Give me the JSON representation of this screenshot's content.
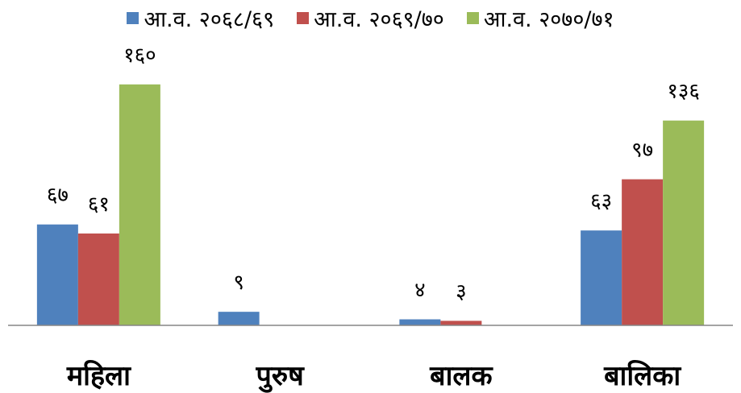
{
  "chart_data": {
    "type": "bar",
    "categories": [
      "महिला",
      "पुरुष",
      "बालक",
      "बालिका"
    ],
    "series": [
      {
        "name": "आ.व. २०६८/६९",
        "color": "#4F81BD",
        "values": [
          67,
          9,
          4,
          63
        ],
        "labels": [
          "६७",
          "९",
          "४",
          "६३"
        ]
      },
      {
        "name": "आ.व. २०६९/७०",
        "color": "#C0504D",
        "values": [
          61,
          0,
          3,
          97
        ],
        "labels": [
          "६१",
          "",
          "३",
          "९७"
        ]
      },
      {
        "name": "आ.व. २०७०/७१",
        "color": "#9BBB59",
        "values": [
          160,
          0,
          0,
          136
        ],
        "labels": [
          "१६०",
          "",
          "",
          "१३६"
        ]
      }
    ],
    "ylim": [
      0,
      200
    ],
    "grid": false,
    "legend": "top"
  }
}
